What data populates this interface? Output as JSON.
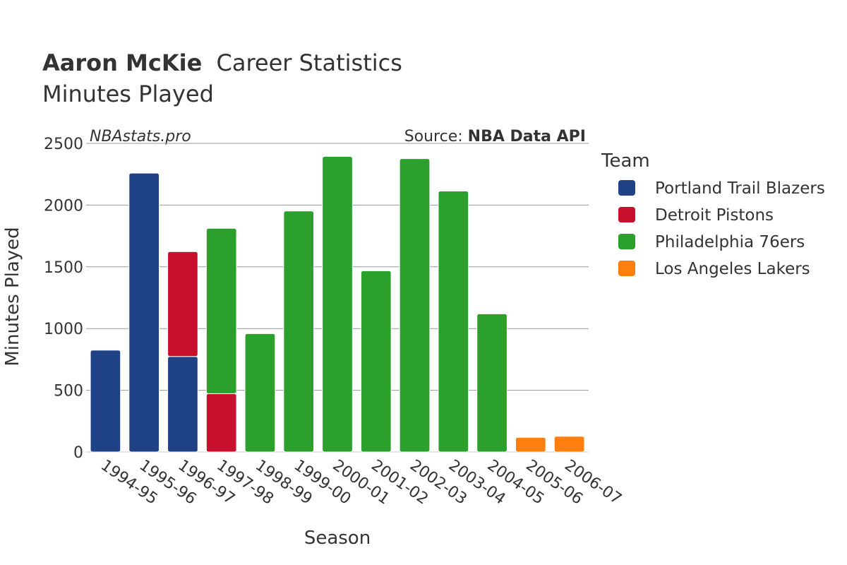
{
  "chart_data": {
    "type": "bar",
    "stacked": true,
    "title_name": "Aaron McKie",
    "title_rest": "Career Statistics",
    "subtitle": "Minutes Played",
    "watermark": "NBAstats.pro",
    "source_prefix": "Source: ",
    "source_name": "NBA Data API",
    "xlabel": "Season",
    "ylabel": "Minutes Played",
    "ylim": [
      0,
      2500
    ],
    "yticks": [
      0,
      500,
      1000,
      1500,
      2000,
      2500
    ],
    "grid": true,
    "legend_title": "Team",
    "legend_position": "right",
    "categories": [
      "1994-95",
      "1995-96",
      "1996-97",
      "1997-98",
      "1998-99",
      "1999-00",
      "2000-01",
      "2001-02",
      "2002-03",
      "2003-04",
      "2004-05",
      "2005-06",
      "2006-07"
    ],
    "series": [
      {
        "name": "Portland Trail Blazers",
        "color": "#1f4287",
        "values": [
          825,
          2259,
          774,
          0,
          0,
          0,
          0,
          0,
          0,
          0,
          0,
          0,
          0
        ]
      },
      {
        "name": "Detroit Pistons",
        "color": "#c8102e",
        "values": [
          0,
          0,
          849,
          473,
          0,
          0,
          0,
          0,
          0,
          0,
          0,
          0,
          0
        ]
      },
      {
        "name": "Philadelphia 76ers",
        "color": "#2ca02c",
        "values": [
          0,
          0,
          0,
          1339,
          959,
          1952,
          2394,
          1468,
          2376,
          2114,
          1119,
          0,
          0
        ]
      },
      {
        "name": "Los Angeles Lakers",
        "color": "#ff7f0e",
        "values": [
          0,
          0,
          0,
          0,
          0,
          0,
          0,
          0,
          0,
          0,
          0,
          119,
          127
        ]
      }
    ]
  }
}
